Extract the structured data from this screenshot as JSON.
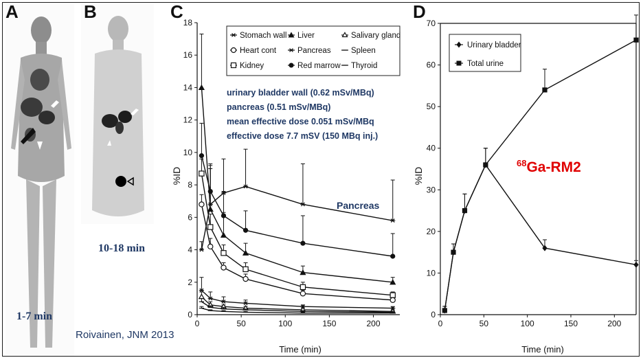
{
  "panels": {
    "a": {
      "letter": "A",
      "caption": "1-7 min"
    },
    "b": {
      "letter": "B",
      "caption": "10-18 min"
    },
    "c": {
      "letter": "C"
    },
    "d": {
      "letter": "D"
    }
  },
  "citation": "Roivainen, JNM 2013",
  "colors": {
    "annotation": "#1f3864",
    "label": "#e00000",
    "axis": "#111111"
  },
  "chart_data": [
    {
      "id": "C",
      "type": "line",
      "xlabel": "Time (min)",
      "ylabel": "%ID",
      "xlim": [
        0,
        230
      ],
      "ylim": [
        0,
        18
      ],
      "xticks": [
        0,
        50,
        100,
        150,
        200
      ],
      "yticks": [
        0,
        2,
        4,
        6,
        8,
        10,
        12,
        14,
        16,
        18
      ],
      "legend": {
        "position": "top-right",
        "entries": [
          "Stomach wall",
          "Liver",
          "Salivary gland",
          "Heart cont",
          "Pancreas",
          "Spleen",
          "Kidney",
          "Red marrow",
          "Thyroid"
        ]
      },
      "annotations": [
        "urinary bladder wall (0.62 mSv/MBq)",
        "pancreas (0.51 mSv/MBq)",
        "mean effective dose 0.051 mSv/MBq",
        "effective dose 7.7 mSV (150 MBq inj.)"
      ],
      "series_label": "Pancreas",
      "series": [
        {
          "name": "Pancreas",
          "marker": "star",
          "x": [
            5,
            15,
            30,
            55,
            120,
            222
          ],
          "y": [
            4.0,
            6.8,
            7.5,
            7.9,
            6.8,
            5.8
          ],
          "err": [
            0.5,
            2.5,
            2.1,
            2.3,
            2.5,
            2.5
          ]
        },
        {
          "name": "Red marrow",
          "marker": "filled-circle",
          "x": [
            5,
            15,
            30,
            55,
            120,
            222
          ],
          "y": [
            9.8,
            7.6,
            6.1,
            5.2,
            4.4,
            3.6
          ],
          "err": [
            2.0,
            1.6,
            1.5,
            1.2,
            1.7,
            1.4
          ]
        },
        {
          "name": "Liver",
          "marker": "filled-triangle",
          "x": [
            5,
            15,
            30,
            55,
            120,
            222
          ],
          "y": [
            14.0,
            6.5,
            4.9,
            3.8,
            2.6,
            2.0
          ],
          "err": [
            3.3,
            2.5,
            1.4,
            0.6,
            0.4,
            0.3
          ]
        },
        {
          "name": "Kidney",
          "marker": "open-square",
          "x": [
            5,
            15,
            30,
            55,
            120,
            222
          ],
          "y": [
            8.7,
            5.4,
            3.8,
            2.8,
            1.7,
            1.2
          ],
          "err": [
            0.9,
            0.8,
            0.5,
            0.4,
            0.3,
            0.2
          ]
        },
        {
          "name": "Heart cont",
          "marker": "open-circle",
          "x": [
            5,
            15,
            30,
            55,
            120,
            222
          ],
          "y": [
            6.8,
            4.2,
            2.9,
            2.2,
            1.3,
            0.9
          ],
          "err": [
            0.6,
            0.5,
            0.3,
            0.3,
            0.2,
            0.15
          ]
        },
        {
          "name": "Stomach wall",
          "marker": "star",
          "x": [
            5,
            15,
            30,
            55,
            120,
            222
          ],
          "y": [
            1.5,
            1.0,
            0.8,
            0.7,
            0.5,
            0.4
          ],
          "err": [
            0.8,
            0.4,
            0.3,
            0.2,
            0.1,
            0.1
          ]
        },
        {
          "name": "Salivary gland",
          "marker": "open-triangle",
          "x": [
            5,
            15,
            30,
            55,
            120,
            222
          ],
          "y": [
            1.1,
            0.6,
            0.5,
            0.4,
            0.3,
            0.2
          ],
          "err": [
            0.3,
            0.2,
            0.1,
            0.1,
            0.1,
            0.05
          ]
        },
        {
          "name": "Spleen",
          "marker": "dash",
          "x": [
            5,
            15,
            30,
            55,
            120,
            222
          ],
          "y": [
            0.8,
            0.45,
            0.35,
            0.3,
            0.2,
            0.15
          ],
          "err": [
            0.2,
            0.1,
            0.1,
            0.05,
            0.05,
            0.05
          ]
        },
        {
          "name": "Thyroid",
          "marker": "dash",
          "x": [
            5,
            15,
            30,
            55,
            120,
            222
          ],
          "y": [
            0.4,
            0.25,
            0.2,
            0.15,
            0.1,
            0.1
          ],
          "err": [
            0.1,
            0.05,
            0.05,
            0.05,
            0.05,
            0.05
          ]
        }
      ]
    },
    {
      "id": "D",
      "type": "line",
      "xlabel": "Time (min)",
      "ylabel": "%ID",
      "xlim": [
        0,
        225
      ],
      "ylim": [
        0,
        70
      ],
      "xticks": [
        0,
        50,
        100,
        150,
        200
      ],
      "yticks": [
        0,
        10,
        20,
        30,
        40,
        50,
        60,
        70
      ],
      "legend": {
        "position": "top-left",
        "entries": [
          "Urinary bladder",
          "Total urine"
        ]
      },
      "label": "Ga-RM2",
      "label_superscript": "68",
      "series": [
        {
          "name": "Urinary bladder",
          "marker": "filled-diamond",
          "x": [
            5,
            15,
            28,
            52,
            120,
            225
          ],
          "y": [
            1,
            15,
            25,
            36,
            16,
            12
          ],
          "err": [
            1,
            2,
            4,
            4,
            2,
            1
          ]
        },
        {
          "name": "Total urine",
          "marker": "filled-square",
          "x": [
            5,
            15,
            28,
            52,
            120,
            225
          ],
          "y": [
            1,
            15,
            25,
            36,
            54,
            66
          ],
          "err": [
            1,
            2,
            4,
            4,
            5,
            6
          ]
        }
      ]
    }
  ]
}
